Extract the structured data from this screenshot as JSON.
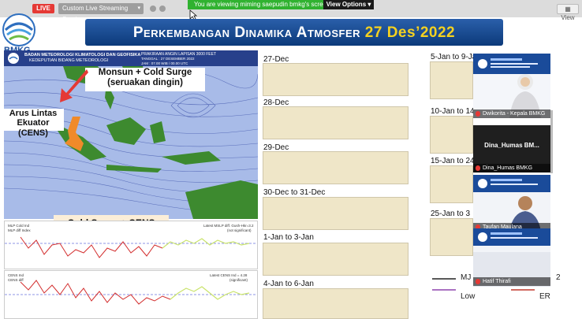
{
  "toolbar": {
    "live_label": "LIVE",
    "stream_service": "Custom Live Streaming Service",
    "viewing_text": "You are viewing miming saepudin bmkg's screen",
    "view_options_label": "View Options",
    "view_button_label": "View"
  },
  "logo": {
    "text": "BMKG"
  },
  "slide": {
    "title_main": "Perkembangan Dinamika Atmosfer",
    "title_date": "27 Des’2022",
    "map_header": {
      "line1": "BADAN METEOROLOGI KLIMATOLOGI DAN GEOFISIKA",
      "line2": "KEDEPUTIAN BIDANG METEOROLOGI",
      "right1": "PRAKIRAAN ANGIN LAPISAN 3000 FEET",
      "right2": "TANGGAL : 27 DESEMBER 2022",
      "right3": "JAM : 07.00 WIB / 00.00 UTC"
    },
    "callouts": {
      "monsun": "Monsun + Cold Surge",
      "seruakan": "(seruakan dingin)",
      "arus1": "Arus Lintas",
      "arus2": "Ekuator (CENS)",
      "cold_surge_cens": "Cold Surge + CENS"
    },
    "graph1": {
      "legend_line1": "MLP Cold Ind",
      "legend_line2": "MLP diff Index",
      "note_line1": "Latest MSLP diff. Gush-Hkr=3.2",
      "note_line2": "(not significant)"
    },
    "graph2": {
      "legend_line1": "CENS Ind",
      "legend_line2": "CENS diff",
      "note_line1": "Latest CENS Ind = 4.28",
      "note_line2": "(significant)"
    },
    "panels_left": [
      "27-Dec",
      "28-Dec",
      "29-Dec",
      "30-Dec to 31-Dec",
      "1-Jan to 3-Jan",
      "4-Jan to 6-Jan"
    ],
    "panels_right": [
      "5-Jan to 9-Jan",
      "10-Jan to 14",
      "15-Jan to 24",
      "25-Jan to 3"
    ],
    "legend": {
      "mjo": "MJ",
      "low": "Low",
      "er": "ER",
      "trailing": "2"
    }
  },
  "participants": [
    {
      "name": "Dwikorita - Kepala BMKG"
    },
    {
      "name": "Dina_Humas  BM...",
      "sublabel": "Dina_Humas BMKG"
    },
    {
      "name": "Taufan Maulana"
    },
    {
      "name": "Hatif Thirafi"
    }
  ],
  "colors": {
    "live": "#e53935",
    "viewing_banner": "#30b230",
    "title_bg": "#0c3a7a",
    "title_highlight": "#f4d120",
    "map_bg": "#9fb4e6"
  }
}
